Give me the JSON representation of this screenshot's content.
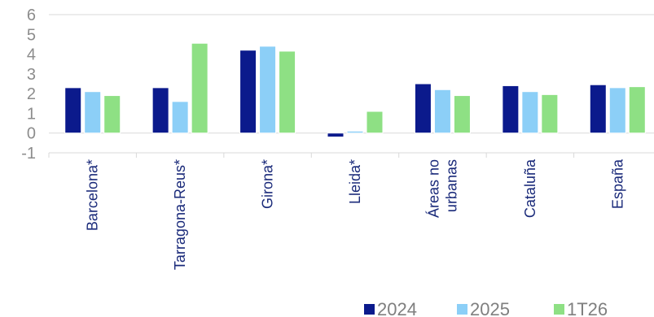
{
  "chart_data": {
    "type": "bar",
    "categories": [
      [
        "Barcelona*"
      ],
      [
        "Tarragona-Reus*"
      ],
      [
        "Girona*"
      ],
      [
        "Lleida*"
      ],
      [
        "Áreas no",
        "urbanas"
      ],
      [
        "Cataluña"
      ],
      [
        "España"
      ]
    ],
    "series": [
      {
        "name": "2024",
        "color": "#0b1a8c",
        "values": [
          2.3,
          2.3,
          4.2,
          -0.2,
          2.5,
          2.4,
          2.45
        ]
      },
      {
        "name": "2025",
        "color": "#8ccff7",
        "values": [
          2.1,
          1.6,
          4.4,
          0.1,
          2.2,
          2.1,
          2.3
        ]
      },
      {
        "name": "1T26",
        "color": "#8ee084",
        "values": [
          1.9,
          4.55,
          4.15,
          1.1,
          1.9,
          1.95,
          2.35
        ]
      }
    ],
    "yticks": [
      "6",
      "5",
      "4",
      "3",
      "2",
      "1",
      "0",
      "-1"
    ],
    "ylim": [
      -1,
      6
    ],
    "title": "",
    "xlabel": "",
    "ylabel": "",
    "grid": false,
    "legend": "bottom-right"
  }
}
